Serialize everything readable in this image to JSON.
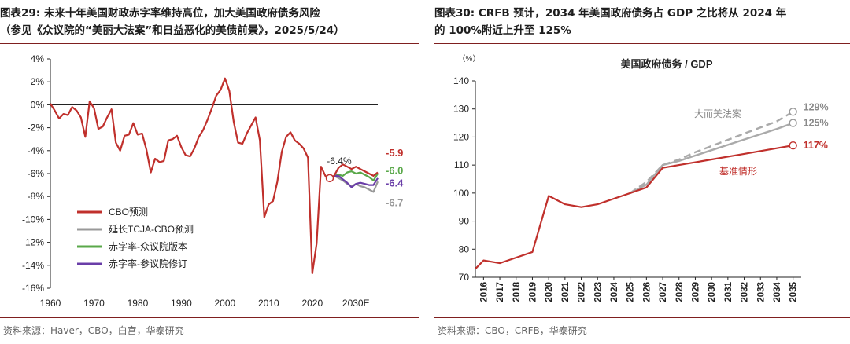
{
  "left": {
    "title_line1": "图表29:  未来十年美国财政赤字率维持高位，加大美国政府债务风险",
    "title_line2": "（参见《众议院的“美丽大法案”和日益恶化的美债前景》，2025/5/24）",
    "source": "资料来源：Haver，CBO，白宫，华泰研究"
  },
  "right": {
    "title_line1": "图表30:  CRFB 预计，2034 年美国政府债务占 GDP 之比将从 2024 年",
    "title_line2": "的 100%附近上升至 125%",
    "source": "资料来源：CBO，CRFB，华泰研究"
  },
  "colors": {
    "cbo": "#c0302c",
    "tcja": "#999999",
    "house": "#5aa84a",
    "senate": "#6a3ea8",
    "rule": "#7f1f1f"
  },
  "chart_data": [
    {
      "type": "line",
      "ylim": [
        -16,
        4
      ],
      "yticks": [
        "4%",
        "2%",
        "0%",
        "-2%",
        "-4%",
        "-6%",
        "-8%",
        "-10%",
        "-12%",
        "-14%",
        "-16%"
      ],
      "xticks": [
        "1960",
        "1970",
        "1980",
        "1990",
        "2000",
        "2010",
        "2020",
        "2030E"
      ],
      "annotations": {
        "callout": "-6.4%",
        "end_cbo": "-5.9",
        "end_house": "-6.0",
        "end_senate": "-6.4",
        "end_tcja": "-6.7"
      },
      "series": [
        {
          "name": "CBO预测",
          "color_key": "cbo",
          "x": [
            1960,
            1961,
            1962,
            1963,
            1964,
            1965,
            1966,
            1967,
            1968,
            1969,
            1970,
            1971,
            1972,
            1973,
            1974,
            1975,
            1976,
            1977,
            1978,
            1979,
            1980,
            1981,
            1982,
            1983,
            1984,
            1985,
            1986,
            1987,
            1988,
            1989,
            1990,
            1991,
            1992,
            1993,
            1994,
            1995,
            1996,
            1997,
            1998,
            1999,
            2000,
            2001,
            2002,
            2003,
            2004,
            2005,
            2006,
            2007,
            2008,
            2009,
            2010,
            2011,
            2012,
            2013,
            2014,
            2015,
            2016,
            2017,
            2018,
            2019,
            2020,
            2021,
            2022,
            2023,
            2024,
            2025,
            2026,
            2027,
            2028,
            2029,
            2030,
            2031,
            2032,
            2033,
            2034,
            2035
          ],
          "values": [
            0.1,
            -0.5,
            -1.2,
            -0.8,
            -0.9,
            -0.2,
            -0.5,
            -1.1,
            -2.8,
            0.3,
            -0.3,
            -2.1,
            -1.9,
            -1.1,
            -0.4,
            -3.3,
            -4.0,
            -2.7,
            -2.6,
            -1.6,
            -2.6,
            -2.5,
            -3.9,
            -5.9,
            -4.7,
            -5.0,
            -4.9,
            -3.1,
            -3.0,
            -2.7,
            -3.7,
            -4.4,
            -4.5,
            -3.8,
            -2.8,
            -2.2,
            -1.3,
            -0.3,
            0.8,
            1.3,
            2.3,
            1.2,
            -1.5,
            -3.3,
            -3.4,
            -2.5,
            -1.8,
            -1.1,
            -3.1,
            -9.8,
            -8.7,
            -8.4,
            -6.7,
            -4.1,
            -2.8,
            -2.4,
            -3.1,
            -3.4,
            -3.8,
            -4.6,
            -14.7,
            -12.1,
            -5.4,
            -6.2,
            -6.4,
            -6.2,
            -5.5,
            -5.2,
            -5.4,
            -5.6,
            -5.4,
            -5.6,
            -5.8,
            -6.0,
            -6.2,
            -5.9
          ]
        },
        {
          "name": "延长TCJA-CBO预测",
          "color_key": "tcja",
          "x": [
            2025,
            2026,
            2027,
            2028,
            2029,
            2030,
            2031,
            2032,
            2033,
            2034,
            2035
          ],
          "values": [
            -6.2,
            -6.4,
            -6.6,
            -6.9,
            -7.1,
            -6.9,
            -7.1,
            -7.2,
            -7.4,
            -7.6,
            -6.7
          ]
        },
        {
          "name": "赤字率-众议院版本",
          "color_key": "house",
          "x": [
            2025,
            2026,
            2027,
            2028,
            2029,
            2030,
            2031,
            2032,
            2033,
            2034,
            2035
          ],
          "values": [
            -6.2,
            -6.1,
            -6.2,
            -5.9,
            -5.8,
            -6.0,
            -5.9,
            -6.1,
            -6.3,
            -6.6,
            -6.0
          ]
        },
        {
          "name": "赤字率-参议院修订",
          "color_key": "senate",
          "x": [
            2025,
            2026,
            2027,
            2028,
            2029,
            2030,
            2031,
            2032,
            2033,
            2034,
            2035
          ],
          "values": [
            -6.2,
            -6.2,
            -6.5,
            -6.8,
            -7.2,
            -6.9,
            -6.8,
            -6.9,
            -7.0,
            -7.0,
            -6.4
          ]
        }
      ]
    },
    {
      "type": "line",
      "title": "美国政府债务 / GDP",
      "yunit": "（%）",
      "ylim": [
        70,
        140
      ],
      "yticks": [
        "140",
        "130",
        "120",
        "110",
        "100",
        "90",
        "80",
        "70"
      ],
      "categories": [
        "2016",
        "2017",
        "2018",
        "2019",
        "2020",
        "2021",
        "2022",
        "2023",
        "2024",
        "2025",
        "2026",
        "2027",
        "2028",
        "2029",
        "2030",
        "2031",
        "2032",
        "2033",
        "2034",
        "2035"
      ],
      "series": [
        {
          "name": "基准情形",
          "color_key": "cbo",
          "end_label": "117%",
          "x": [
            2015.5,
            2016,
            2017,
            2018,
            2019,
            2020,
            2021,
            2022,
            2023,
            2024,
            2025,
            2026,
            2027,
            2028,
            2029,
            2030,
            2031,
            2032,
            2033,
            2034,
            2035
          ],
          "values": [
            73,
            76,
            75,
            77,
            79,
            99,
            96,
            95,
            96,
            98,
            100,
            102,
            109,
            110,
            111,
            112,
            113,
            114,
            115,
            116,
            117
          ]
        },
        {
          "name": "大而美法案",
          "color_key": "tcja",
          "end_label": "129%",
          "x": [
            2025,
            2026,
            2027,
            2028,
            2029,
            2030,
            2031,
            2032,
            2033,
            2034,
            2035
          ],
          "values": [
            100,
            104,
            110,
            112,
            114.6,
            116.8,
            119,
            121.2,
            123.4,
            125.6,
            129
          ]
        },
        {
          "name": "",
          "color_key": "tcja",
          "end_label": "125%",
          "x": [
            2025,
            2026,
            2027,
            2028,
            2029,
            2030,
            2031,
            2032,
            2033,
            2034,
            2035
          ],
          "values": [
            100,
            103,
            110,
            111.5,
            113.4,
            115.3,
            117.2,
            119.1,
            121,
            122.9,
            125
          ]
        }
      ]
    }
  ]
}
